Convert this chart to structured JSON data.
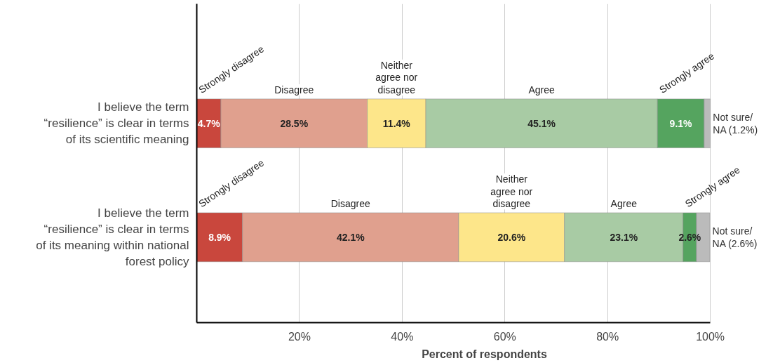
{
  "chart_data": {
    "type": "bar",
    "orientation": "horizontal",
    "stacked": true,
    "xlabel": "Percent of respondents",
    "categories": [
      "I believe the term “resilience” is clear in terms of its scientific meaning",
      "I believe the term “resilience” is clear in terms of its meaning within national forest policy"
    ],
    "series": [
      {
        "name": "Strongly disagree",
        "color": "#c9473d",
        "values": [
          4.7,
          8.9
        ],
        "value_labels": [
          "4.7%",
          "8.9%"
        ]
      },
      {
        "name": "Disagree",
        "color": "#e0a08e",
        "values": [
          28.5,
          42.1
        ],
        "value_labels": [
          "28.5%",
          "42.1%"
        ]
      },
      {
        "name": "Neither agree nor disagree",
        "color": "#fde68a",
        "values": [
          11.4,
          20.6
        ],
        "value_labels": [
          "11.4%",
          "20.6%"
        ]
      },
      {
        "name": "Agree",
        "color": "#a8cba4",
        "values": [
          45.1,
          23.1
        ],
        "value_labels": [
          "45.1%",
          "23.1%"
        ]
      },
      {
        "name": "Strongly agree",
        "color": "#55a45f",
        "values": [
          9.1,
          2.6
        ],
        "value_labels": [
          "9.1%",
          "2.6%"
        ]
      },
      {
        "color": "#bbbbbb",
        "values": [
          1.2,
          2.6
        ],
        "value_labels": [
          "Not sure/\nNA (1.2%)",
          "Not sure/\nNA (2.6%)"
        ]
      }
    ],
    "xlim": [
      0,
      100
    ],
    "xticks": [
      {
        "value": 0,
        "label": null
      },
      {
        "value": 20,
        "label": "20%"
      },
      {
        "value": 40,
        "label": "40%"
      },
      {
        "value": 60,
        "label": "60%"
      },
      {
        "value": 80,
        "label": "80%"
      },
      {
        "value": 100,
        "label": "100%"
      }
    ],
    "grid": "x",
    "legend": false
  }
}
